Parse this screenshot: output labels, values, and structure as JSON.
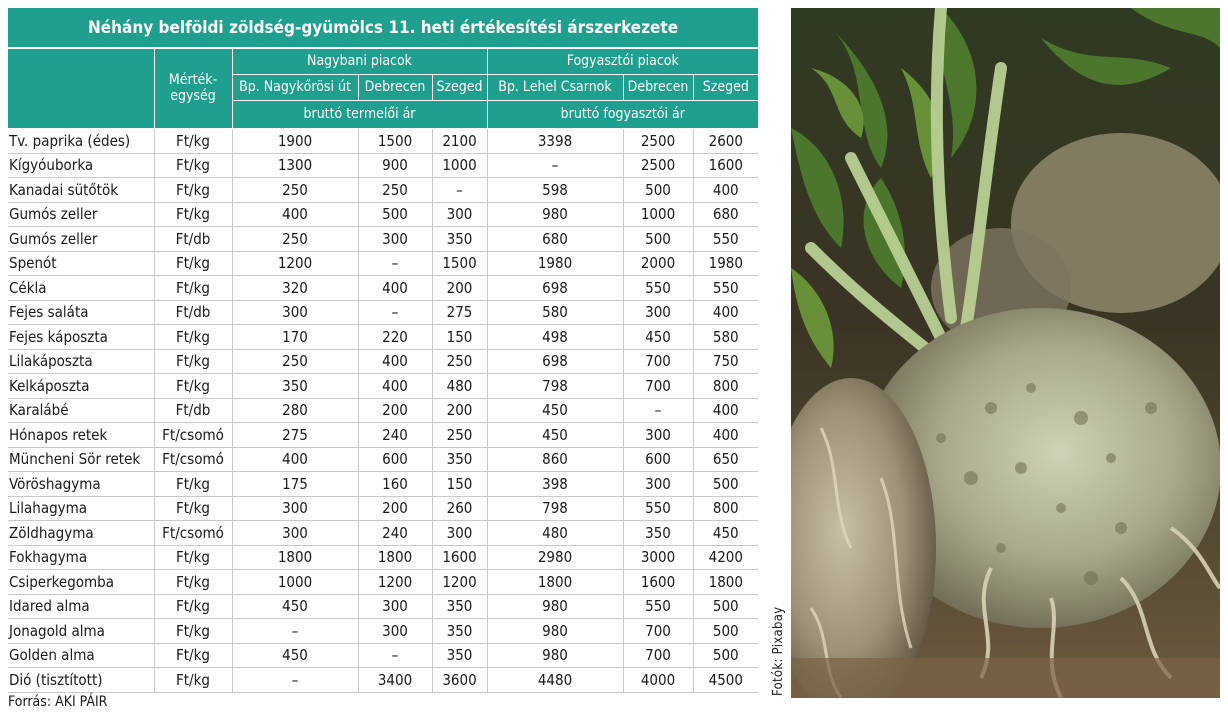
{
  "title": "Néhány belföldi zöldség-gyümölcs 11. heti értékesítési árszerkezete",
  "unit_header": "Mérték-egység",
  "groups": {
    "wholesale": "Nagybani piacok",
    "consumer": "Fogyasztói piacok"
  },
  "markets": [
    "Bp. Nagykőrösi út",
    "Debrecen",
    "Szeged",
    "Bp. Lehel Csarnok",
    "Debrecen",
    "Szeged"
  ],
  "price_types": {
    "wholesale": "bruttó termelői ár",
    "consumer": "bruttó fogyasztói ár"
  },
  "rows": [
    {
      "name": "Tv. paprika (édes)",
      "unit": "Ft/kg",
      "v": [
        "1900",
        "1500",
        "2100",
        "3398",
        "2500",
        "2600"
      ]
    },
    {
      "name": "Kígyóuborka",
      "unit": "Ft/kg",
      "v": [
        "1300",
        "900",
        "1000",
        "–",
        "2500",
        "1600"
      ]
    },
    {
      "name": "Kanadai sütőtök",
      "unit": "Ft/kg",
      "v": [
        "250",
        "250",
        "–",
        "598",
        "500",
        "400"
      ]
    },
    {
      "name": "Gumós zeller",
      "unit": "Ft/kg",
      "v": [
        "400",
        "500",
        "300",
        "980",
        "1000",
        "680"
      ]
    },
    {
      "name": "Gumós zeller",
      "unit": "Ft/db",
      "v": [
        "250",
        "300",
        "350",
        "680",
        "500",
        "550"
      ]
    },
    {
      "name": "Spenót",
      "unit": "Ft/kg",
      "v": [
        "1200",
        "–",
        "1500",
        "1980",
        "2000",
        "1980"
      ]
    },
    {
      "name": "Cékla",
      "unit": "Ft/kg",
      "v": [
        "320",
        "400",
        "200",
        "698",
        "550",
        "550"
      ]
    },
    {
      "name": "Fejes saláta",
      "unit": "Ft/db",
      "v": [
        "300",
        "–",
        "275",
        "580",
        "300",
        "400"
      ]
    },
    {
      "name": "Fejes káposzta",
      "unit": "Ft/kg",
      "v": [
        "170",
        "220",
        "150",
        "498",
        "450",
        "580"
      ]
    },
    {
      "name": "Lilakáposzta",
      "unit": "Ft/kg",
      "v": [
        "250",
        "400",
        "250",
        "698",
        "700",
        "750"
      ]
    },
    {
      "name": "Kelkáposzta",
      "unit": "Ft/kg",
      "v": [
        "350",
        "400",
        "480",
        "798",
        "700",
        "800"
      ]
    },
    {
      "name": "Karalábé",
      "unit": "Ft/db",
      "v": [
        "280",
        "200",
        "200",
        "450",
        "–",
        "400"
      ]
    },
    {
      "name": "Hónapos retek",
      "unit": "Ft/csomó",
      "v": [
        "275",
        "240",
        "250",
        "450",
        "300",
        "400"
      ]
    },
    {
      "name": "Müncheni Sör retek",
      "unit": "Ft/csomó",
      "v": [
        "400",
        "600",
        "350",
        "860",
        "600",
        "650"
      ]
    },
    {
      "name": "Vöröshagyma",
      "unit": "Ft/kg",
      "v": [
        "175",
        "160",
        "150",
        "398",
        "300",
        "500"
      ]
    },
    {
      "name": "Lilahagyma",
      "unit": "Ft/kg",
      "v": [
        "300",
        "200",
        "260",
        "798",
        "550",
        "800"
      ]
    },
    {
      "name": "Zöldhagyma",
      "unit": "Ft/csomó",
      "v": [
        "300",
        "240",
        "300",
        "480",
        "350",
        "450"
      ]
    },
    {
      "name": "Fokhagyma",
      "unit": "Ft/kg",
      "v": [
        "1800",
        "1800",
        "1600",
        "2980",
        "3000",
        "4200"
      ]
    },
    {
      "name": "Csiperkegomba",
      "unit": "Ft/kg",
      "v": [
        "1000",
        "1200",
        "1200",
        "1800",
        "1600",
        "1800"
      ]
    },
    {
      "name": "Idared alma",
      "unit": "Ft/kg",
      "v": [
        "450",
        "300",
        "350",
        "980",
        "550",
        "500"
      ]
    },
    {
      "name": "Jonagold alma",
      "unit": "Ft/kg",
      "v": [
        "–",
        "300",
        "350",
        "980",
        "700",
        "500"
      ]
    },
    {
      "name": "Golden alma",
      "unit": "Ft/kg",
      "v": [
        "450",
        "–",
        "350",
        "980",
        "700",
        "500"
      ]
    },
    {
      "name": "Dió (tisztított)",
      "unit": "Ft/kg",
      "v": [
        "–",
        "3400",
        "3600",
        "4480",
        "4000",
        "4500"
      ]
    }
  ],
  "source": "Forrás: AKI PÁIR",
  "photo_credit": "Fotók: Pixabay",
  "colors": {
    "header_bg": "#1fa08f",
    "header_text": "#ffffff"
  }
}
